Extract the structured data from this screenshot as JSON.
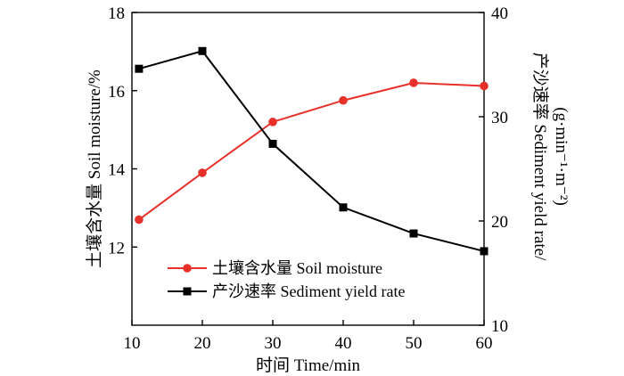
{
  "chart_data": {
    "type": "line",
    "x": [
      11,
      20,
      30,
      40,
      50,
      60
    ],
    "xlabel": "时间 Time/min",
    "xlim": [
      10,
      60
    ],
    "xticks": [
      10,
      20,
      30,
      40,
      50,
      60
    ],
    "ylabel_left": "土壤含水量 Soil moisture/%",
    "ylim_left": [
      10,
      18
    ],
    "yticks_left": [
      12,
      14,
      16,
      18
    ],
    "ylabel_right_line1": "产沙速率 Sediment yield rate/",
    "ylabel_right_line2": "(g·min⁻¹·m⁻²)",
    "ylim_right": [
      10,
      40
    ],
    "yticks_right": [
      10,
      20,
      30,
      40
    ],
    "grid": false,
    "legend_position": "bottom-right",
    "series": [
      {
        "name": "土壤含水量 Soil moisture",
        "axis": "left",
        "color": "#e8302a",
        "marker": "circle",
        "values": [
          12.7,
          13.9,
          15.2,
          15.75,
          16.2,
          16.12
        ]
      },
      {
        "name": "产沙速率 Sediment yield rate",
        "axis": "right",
        "color": "#000000",
        "marker": "square",
        "values": [
          34.6,
          36.3,
          27.4,
          21.3,
          18.8,
          17.1
        ]
      }
    ]
  }
}
